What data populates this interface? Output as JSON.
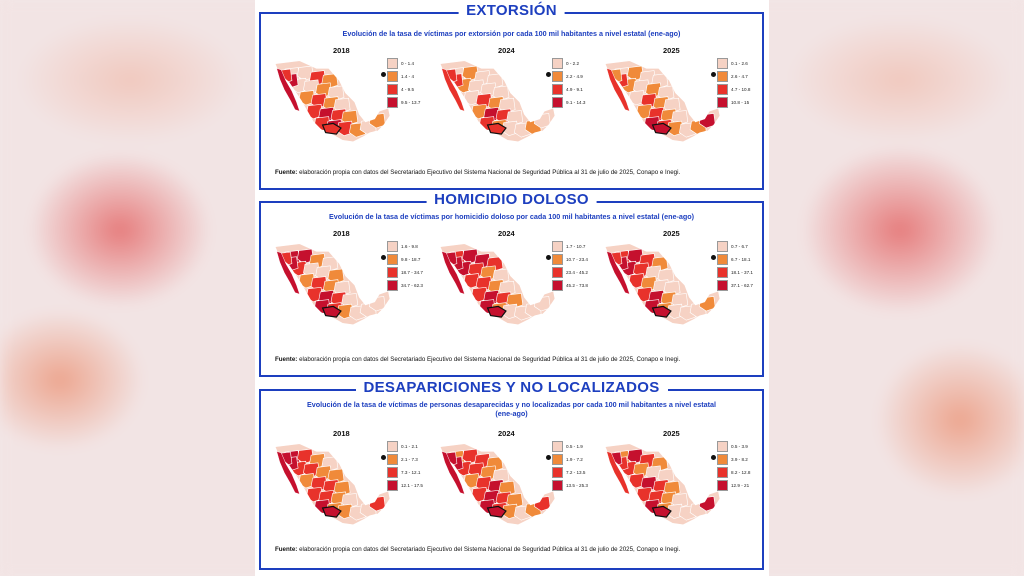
{
  "colors": {
    "accent": "#1d3fbf",
    "c1": "#f6d2c4",
    "c2": "#f08a3a",
    "c3": "#e8322b",
    "c4": "#c5102e"
  },
  "sections": [
    {
      "title": "EXTORSIÓN",
      "subtitle": "Evolución de la tasa de víctimas por extorsión por cada 100 mil habitantes a nivel estatal (ene-ago)",
      "maps": [
        {
          "year": "2018",
          "legend": [
            "0 - 1.4",
            "1.4 - 4",
            "4 - 9.5",
            "9.5 - 13.7"
          ]
        },
        {
          "year": "2024",
          "legend": [
            "0 - 2.2",
            "2.2 - 4.9",
            "4.9 - 9.1",
            "9.1 - 14.3"
          ]
        },
        {
          "year": "2025",
          "legend": [
            "0.1 - 2.6",
            "2.6 - 4.7",
            "4.7 - 10.8",
            "10.8 - 15"
          ]
        }
      ],
      "source_bold": "Fuente:",
      "source_text": " elaboración propia con datos del Secretariado Ejecutivo del Sistema Nacional de Seguridad Pública al 31 de julio de 2025, Conapo e Inegi."
    },
    {
      "title": "HOMICIDIO DOLOSO",
      "subtitle": "Evolución de la tasa de víctimas por homicidio doloso por cada 100 mil habitantes a nivel estatal (ene-ago)",
      "maps": [
        {
          "year": "2018",
          "legend": [
            "1.6 - 9.8",
            "9.8 - 18.7",
            "18.7 - 34.7",
            "34.7 - 62.3"
          ]
        },
        {
          "year": "2024",
          "legend": [
            "1.7 - 10.7",
            "10.7 - 23.4",
            "23.4 - 45.2",
            "45.2 - 73.8"
          ]
        },
        {
          "year": "2025",
          "legend": [
            "0.7 - 6.7",
            "6.7 - 18.1",
            "18.1 - 37.1",
            "37.1 - 62.7"
          ]
        }
      ],
      "source_bold": "Fuente:",
      "source_text": " elaboración propia con datos del Secretariado Ejecutivo del Sistema Nacional de Seguridad Pública al 31 de julio de 2025, Conapo e Inegi."
    },
    {
      "title": "DESAPARICIONES Y NO LOCALIZADOS",
      "subtitle": "Evolución de la tasa de víctimas de personas desaparecidas y no localizadas por cada 100 mil habitantes a nivel estatal (ene-ago)",
      "maps": [
        {
          "year": "2018",
          "legend": [
            "0.1 - 2.1",
            "2.1 - 7.3",
            "7.3 - 12.1",
            "12.1 - 17.5"
          ]
        },
        {
          "year": "2024",
          "legend": [
            "0.5 - 1.9",
            "1.9 - 7.2",
            "7.2 - 13.5",
            "13.5 - 25.3"
          ]
        },
        {
          "year": "2025",
          "legend": [
            "0.5 - 3.9",
            "3.9 - 8.2",
            "8.2 - 12.8",
            "12.9 - 21"
          ]
        }
      ],
      "source_bold": "Fuente:",
      "source_text": " elaboración propia con datos del Secretariado Ejecutivo del Sistema Nacional de Seguridad Pública al 31 de julio de 2025, Conapo e Inegi."
    }
  ]
}
